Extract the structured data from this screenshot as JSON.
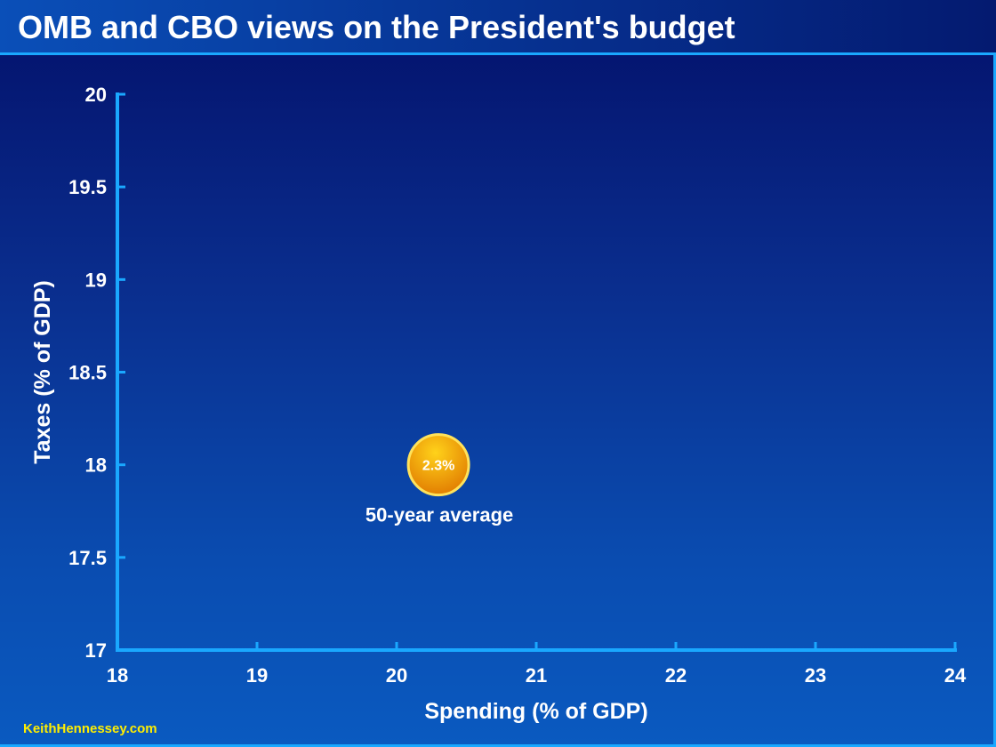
{
  "slide": {
    "title": "OMB and CBO views on the President's budget",
    "footer": "KeithHennessey.com"
  },
  "colors": {
    "axis": "#1aa8ff",
    "text": "#ffffff",
    "bubble_fill_top": "#ffd21a",
    "bubble_fill_bottom": "#e07800",
    "bubble_edge": "#ffe25a",
    "footer": "#ffee00"
  },
  "chart_data": {
    "type": "scatter",
    "xlabel": "Spending (% of GDP)",
    "ylabel": "Taxes (% of GDP)",
    "xlim": [
      18,
      24
    ],
    "ylim": [
      17,
      20
    ],
    "xticks": [
      18,
      19,
      20,
      21,
      22,
      23,
      24
    ],
    "yticks": [
      17,
      17.5,
      18,
      18.5,
      19,
      19.5,
      20
    ],
    "grid": false,
    "points": [
      {
        "x": 20.3,
        "y": 18.0,
        "bubble_label": "2.3%",
        "annotation": "50-year average"
      }
    ]
  }
}
